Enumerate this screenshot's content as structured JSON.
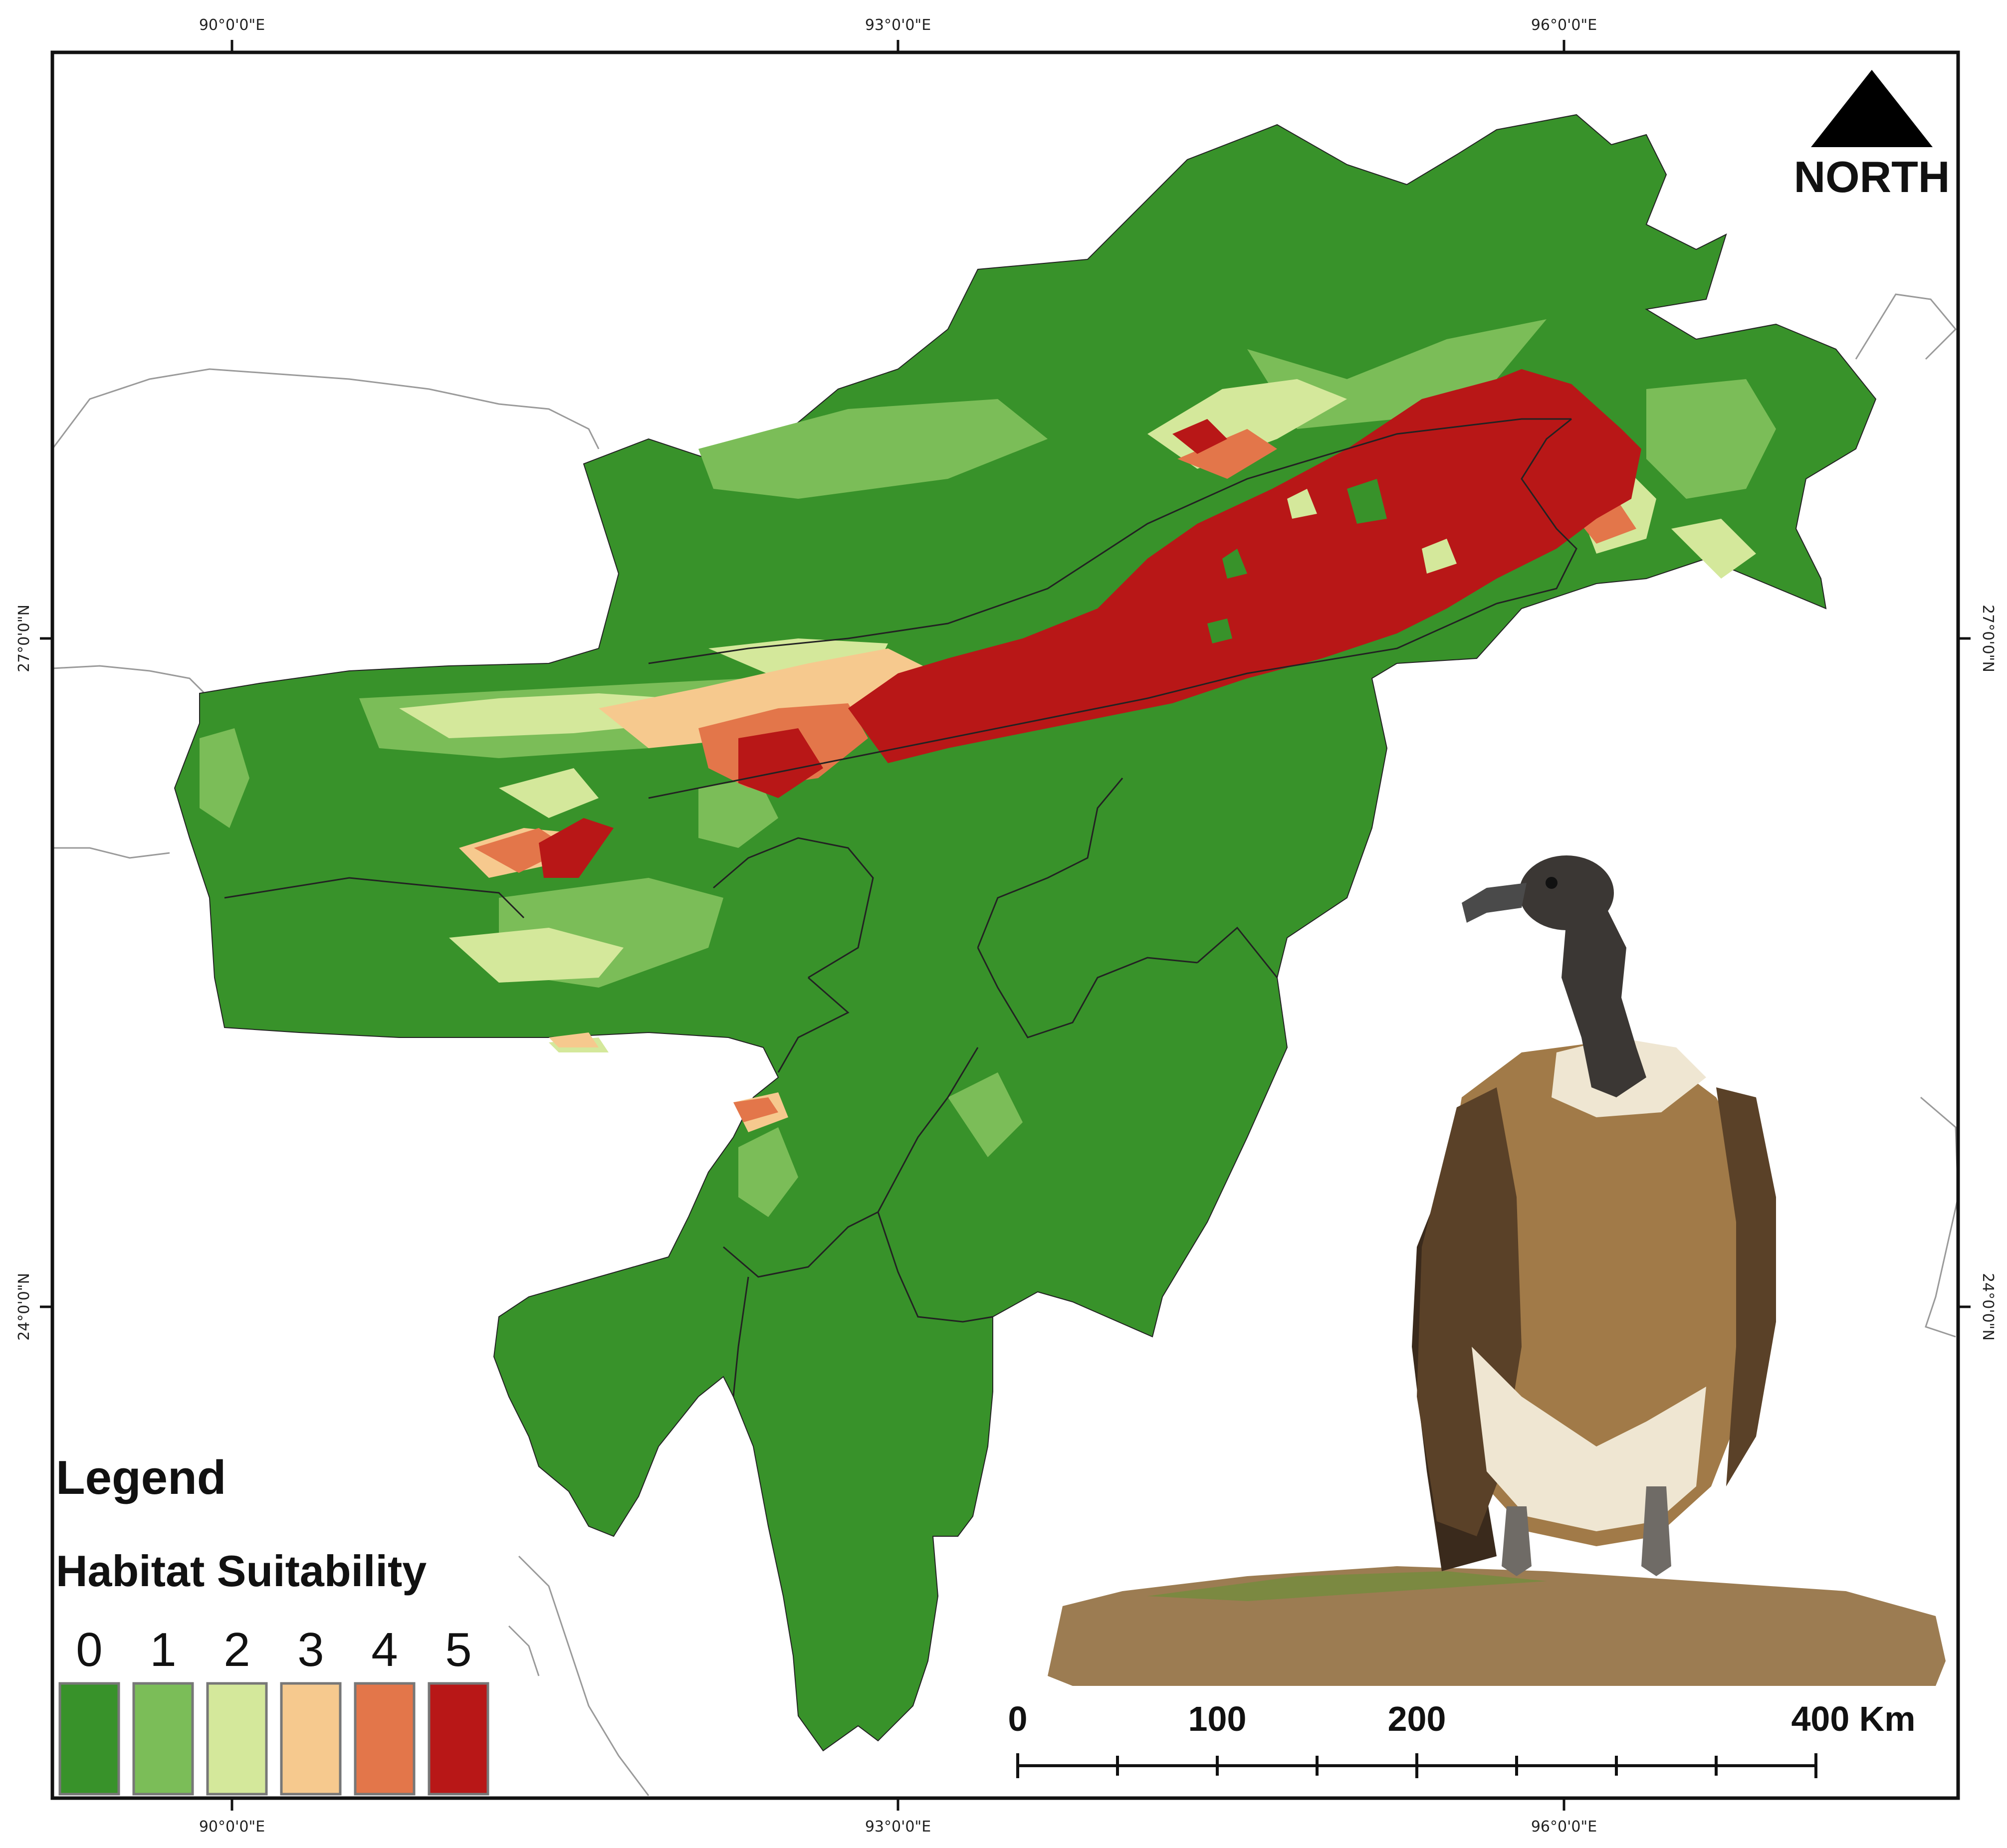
{
  "map": {
    "graticule": {
      "top": [
        "90°0'0\"E",
        "93°0'0\"E",
        "96°0'0\"E"
      ],
      "bottom": [
        "90°0'0\"E",
        "93°0'0\"E",
        "96°0'0\"E"
      ],
      "left": [
        "27°0'0\"N",
        "24°0'0\"N"
      ],
      "right": [
        "27°0'0\"N",
        "24°0'0\"N"
      ]
    },
    "north_arrow": {
      "label": "NORTH"
    },
    "legend": {
      "title": "Legend",
      "subtitle": "Habitat Suitability",
      "classes": [
        {
          "label": "0",
          "color": "#38922a"
        },
        {
          "label": "1",
          "color": "#7bbd58"
        },
        {
          "label": "2",
          "color": "#d4e89b"
        },
        {
          "label": "3",
          "color": "#f6c98e"
        },
        {
          "label": "4",
          "color": "#e3764a"
        },
        {
          "label": "5",
          "color": "#b81717"
        }
      ]
    },
    "scale_bar": {
      "labels": [
        "0",
        "100",
        "200",
        "400 Km"
      ]
    }
  }
}
